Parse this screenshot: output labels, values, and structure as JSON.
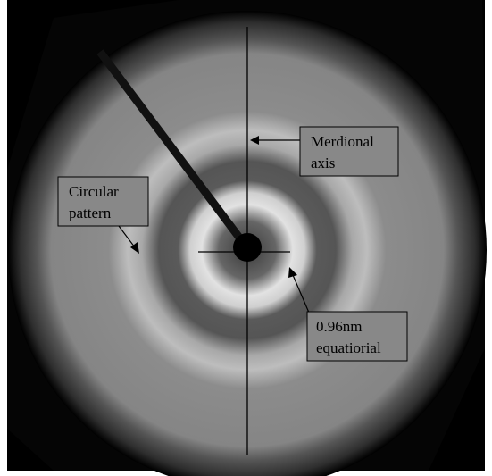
{
  "labels": [
    {
      "lines": [
        "Merdional",
        "axis"
      ]
    },
    {
      "lines": [
        "Circular",
        "pattern"
      ]
    },
    {
      "lines": [
        "0.96nm",
        "equatiorial"
      ]
    }
  ]
}
